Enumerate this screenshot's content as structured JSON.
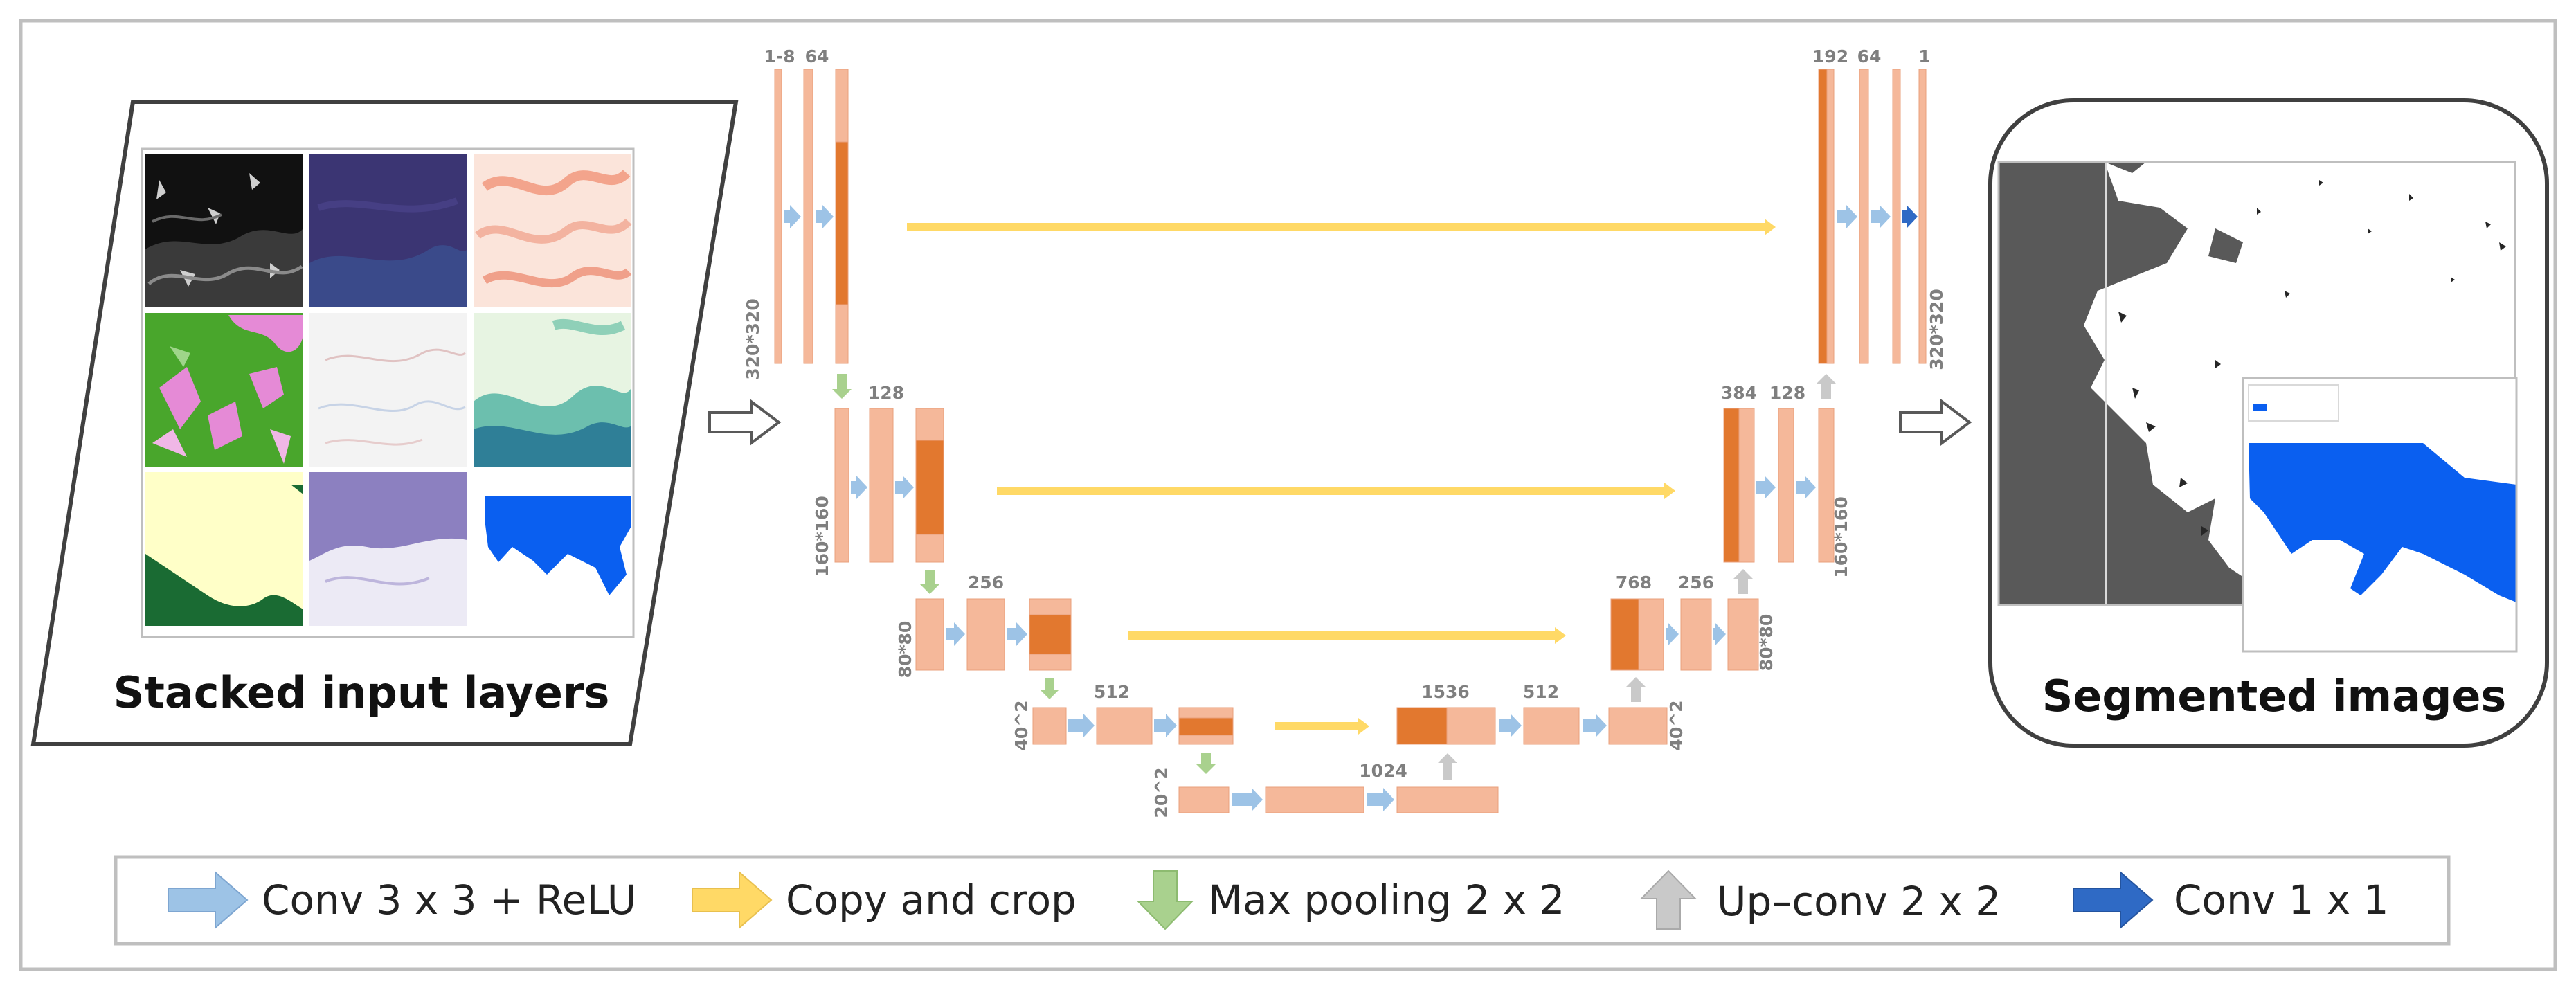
{
  "input_panel": {
    "title": "Stacked input layers"
  },
  "output_panel": {
    "title": "Segmented images"
  },
  "channels": {
    "enc1_in": "1-8",
    "enc1": "64",
    "enc2": "128",
    "enc3": "256",
    "enc4": "512",
    "bottleneck": "1024",
    "dec4_concat": "1536",
    "dec4": "512",
    "dec3_concat": "768",
    "dec3": "256",
    "dec2_concat": "384",
    "dec2": "128",
    "dec1_concat": "192",
    "dec1": "64",
    "output": "1"
  },
  "resolutions": {
    "level1": "320*320",
    "level2": "160*160",
    "level3": "80*80",
    "level4": "40^2",
    "level5": "20^2"
  },
  "legend": {
    "conv": "Conv 3 x 3 + ReLU",
    "copy": "Copy and crop",
    "pool": "Max pooling 2 x 2",
    "upconv": "Up–conv 2 x 2",
    "conv1": "Conv 1 x 1"
  },
  "colors": {
    "feature_light": "#f5b89a",
    "feature_dark": "#e2782f",
    "conv_arrow": "#9dc3e6",
    "copy_arrow": "#ffd966",
    "pool_arrow": "#a9d18e",
    "upconv_arrow": "#c9c9c9",
    "conv1_arrow": "#2f6ac5"
  }
}
